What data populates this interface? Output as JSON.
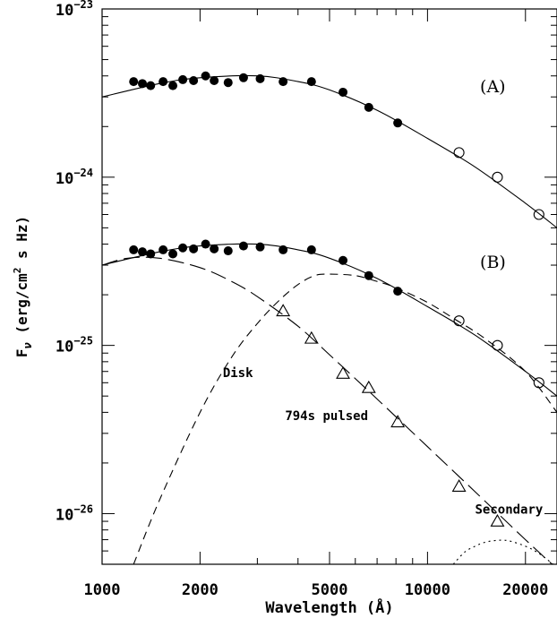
{
  "chart_data": {
    "type": "scatter",
    "xlabel": "Wavelength (Å)",
    "ylabel_main": "F",
    "ylabel_sub": "ν",
    "ylabel_rest": " (erg/cm",
    "ylabel_sup": "2",
    "ylabel_end": " s Hz)",
    "x_scale": "log",
    "y_scale": "log",
    "xlim": [
      1000,
      25000
    ],
    "ylim": [
      5e-27,
      1e-23
    ],
    "x_ticks": [
      {
        "value": 1000,
        "label": "1000"
      },
      {
        "value": 2000,
        "label": "2000"
      },
      {
        "value": 5000,
        "label": "5000"
      },
      {
        "value": 10000,
        "label": "10000"
      },
      {
        "value": 20000,
        "label": "20000"
      }
    ],
    "y_ticks": [
      {
        "value": 1e-23,
        "base": "10",
        "exp": "−23"
      },
      {
        "value": 1e-24,
        "base": "10",
        "exp": "−24"
      },
      {
        "value": 1e-25,
        "base": "10",
        "exp": "−25"
      },
      {
        "value": 1e-26,
        "base": "10",
        "exp": "−26"
      }
    ],
    "panel_labels": [
      {
        "text": "(A)",
        "x": 14500,
        "y": 3.2e-24
      },
      {
        "text": "(B)",
        "x": 14500,
        "y": 2.9e-25
      }
    ],
    "annotations": [
      {
        "text": "Disk",
        "x": 2350,
        "y": 6.5e-26
      },
      {
        "text": "794s pulsed",
        "x": 3650,
        "y": 3.6e-26
      },
      {
        "text": "Secondary",
        "x": 14000,
        "y": 1e-26
      }
    ],
    "series": [
      {
        "marker": "filled-circle",
        "x": [
          1250,
          1330,
          1410,
          1540,
          1650,
          1770,
          1910,
          2080,
          2210,
          2440,
          2720,
          3060,
          3600,
          4400,
          5500,
          6600,
          8100
        ],
        "y": [
          3.7e-24,
          3.6e-24,
          3.5e-24,
          3.7e-24,
          3.5e-24,
          3.8e-24,
          3.75e-24,
          4e-24,
          3.75e-24,
          3.65e-24,
          3.9e-24,
          3.85e-24,
          3.7e-24,
          3.7e-24,
          3.2e-24,
          2.6e-24,
          2.1e-24
        ]
      },
      {
        "marker": "open-circle",
        "x": [
          12500,
          16400,
          22000
        ],
        "y": [
          1.4e-24,
          1e-24,
          6e-25
        ]
      },
      {
        "marker": "filled-circle",
        "x": [
          1250,
          1330,
          1410,
          1540,
          1650,
          1770,
          1910,
          2080,
          2210,
          2440,
          2720,
          3060,
          3600,
          4400,
          5500,
          6600,
          8100
        ],
        "y": [
          3.7e-25,
          3.6e-25,
          3.5e-25,
          3.7e-25,
          3.5e-25,
          3.8e-25,
          3.75e-25,
          4e-25,
          3.75e-25,
          3.65e-25,
          3.9e-25,
          3.85e-25,
          3.7e-25,
          3.7e-25,
          3.2e-25,
          2.6e-25,
          2.1e-25
        ]
      },
      {
        "marker": "open-circle",
        "x": [
          12500,
          16400,
          22000
        ],
        "y": [
          1.4e-25,
          1e-25,
          6e-26
        ]
      },
      {
        "marker": "open-triangle",
        "x": [
          3600,
          4400,
          5500,
          6600,
          8100,
          12500,
          16400
        ],
        "y": [
          1.6e-25,
          1.1e-25,
          6.8e-26,
          5.6e-26,
          3.5e-26,
          1.45e-26,
          9e-27
        ]
      }
    ],
    "curves": [
      {
        "style": "solid",
        "x": [
          1000,
          1500,
          2000,
          3000,
          4000,
          5000,
          7000,
          10000,
          14000,
          20000,
          25000
        ],
        "y": [
          3e-24,
          3.6e-24,
          3.9e-24,
          4e-24,
          3.7e-24,
          3.3e-24,
          2.5e-24,
          1.7e-24,
          1.15e-24,
          7e-25,
          5e-25
        ]
      },
      {
        "style": "solid",
        "x": [
          1000,
          1500,
          2000,
          3000,
          4000,
          5000,
          7000,
          10000,
          14000,
          20000,
          25000
        ],
        "y": [
          3e-25,
          3.6e-25,
          3.9e-25,
          4e-25,
          3.7e-25,
          3.3e-25,
          2.5e-25,
          1.7e-25,
          1.15e-25,
          7e-26,
          5e-26
        ]
      },
      {
        "style": "dashed",
        "x": [
          1250,
          1500,
          2000,
          2500,
          3000,
          3500,
          4000,
          4500,
          5000,
          6000,
          7000,
          8000,
          10000,
          12000,
          15000,
          20000,
          25000
        ],
        "y": [
          5e-27,
          1.2e-26,
          4e-26,
          8.5e-26,
          1.35e-25,
          1.85e-25,
          2.3e-25,
          2.6e-25,
          2.65e-25,
          2.6e-25,
          2.4e-25,
          2.2e-25,
          1.8e-25,
          1.45e-25,
          1.1e-25,
          7e-26,
          4e-26
        ]
      },
      {
        "style": "long-dashed",
        "x": [
          1000,
          1200,
          1500,
          2000,
          2500,
          3000,
          4000,
          5000,
          7000,
          10000,
          14000,
          20000,
          25000
        ],
        "y": [
          3e-25,
          3.3e-25,
          3.3e-25,
          2.9e-25,
          2.4e-25,
          1.95e-25,
          1.3e-25,
          8.8e-26,
          4.8e-26,
          2.5e-26,
          1.35e-26,
          7e-27,
          4.7e-27
        ]
      },
      {
        "style": "dotted",
        "x": [
          12000,
          13000,
          14000,
          15000,
          16000,
          17000,
          18000,
          20000,
          22000,
          25000
        ],
        "y": [
          5e-27,
          5.9e-27,
          6.4e-27,
          6.75e-27,
          6.9e-27,
          6.95e-27,
          6.85e-27,
          6.4e-27,
          5.8e-27,
          4.8e-27
        ]
      }
    ]
  }
}
